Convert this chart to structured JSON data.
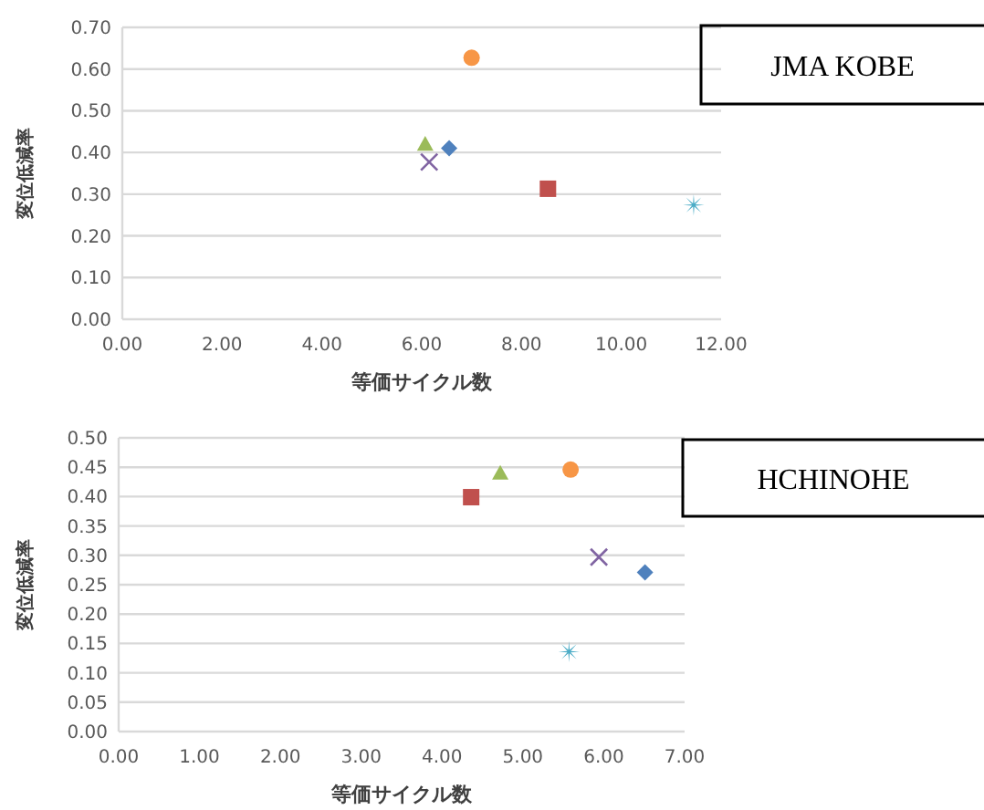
{
  "chart_data": [
    {
      "type": "scatter",
      "xlabel": "等価サイクル数",
      "ylabel": "変位低減率",
      "annotations": [
        "JMA KOBE"
      ],
      "grid": "y",
      "xlim": [
        0,
        12
      ],
      "ylim": [
        0,
        0.7
      ],
      "xticks": [
        {
          "value": 0,
          "label": "0.00"
        },
        {
          "value": 2,
          "label": "2.00"
        },
        {
          "value": 4,
          "label": "4.00"
        },
        {
          "value": 6,
          "label": "6.00"
        },
        {
          "value": 8,
          "label": "8.00"
        },
        {
          "value": 10,
          "label": "10.00"
        },
        {
          "value": 12,
          "label": "12.00"
        }
      ],
      "yticks": [
        {
          "value": 0,
          "label": "0.00"
        },
        {
          "value": 0.1,
          "label": "0.10"
        },
        {
          "value": 0.2,
          "label": "0.20"
        },
        {
          "value": 0.3,
          "label": "0.30"
        },
        {
          "value": 0.4,
          "label": "0.40"
        },
        {
          "value": 0.5,
          "label": "0.50"
        },
        {
          "value": 0.6,
          "label": "0.60"
        },
        {
          "value": 0.7,
          "label": "0.70"
        }
      ],
      "series": [
        {
          "color": "#4f81bd",
          "marker": "diamond",
          "x": [
            6.55
          ],
          "values": [
            0.41
          ]
        },
        {
          "color": "#c0504d",
          "marker": "square",
          "x": [
            8.53
          ],
          "values": [
            0.313
          ]
        },
        {
          "color": "#9bbb59",
          "marker": "triangle",
          "x": [
            6.07
          ],
          "values": [
            0.42
          ]
        },
        {
          "color": "#8064a2",
          "marker": "cross",
          "x": [
            6.15
          ],
          "values": [
            0.377
          ]
        },
        {
          "color": "#4bacc6",
          "marker": "star",
          "x": [
            11.45
          ],
          "values": [
            0.274
          ]
        },
        {
          "color": "#f79646",
          "marker": "circle",
          "x": [
            7.0
          ],
          "values": [
            0.627
          ]
        }
      ]
    },
    {
      "type": "scatter",
      "xlabel": "等価サイクル数",
      "ylabel": "変位低減率",
      "annotations": [
        "HCHINOHE"
      ],
      "grid": "y",
      "xlim": [
        0,
        7
      ],
      "ylim": [
        0,
        0.5
      ],
      "xticks": [
        {
          "value": 0,
          "label": "0.00"
        },
        {
          "value": 1,
          "label": "1.00"
        },
        {
          "value": 2,
          "label": "2.00"
        },
        {
          "value": 3,
          "label": "3.00"
        },
        {
          "value": 4,
          "label": "4.00"
        },
        {
          "value": 5,
          "label": "5.00"
        },
        {
          "value": 6,
          "label": "6.00"
        },
        {
          "value": 7,
          "label": "7.00"
        }
      ],
      "yticks": [
        {
          "value": 0,
          "label": "0.00"
        },
        {
          "value": 0.05,
          "label": "0.05"
        },
        {
          "value": 0.1,
          "label": "0.10"
        },
        {
          "value": 0.15,
          "label": "0.15"
        },
        {
          "value": 0.2,
          "label": "0.20"
        },
        {
          "value": 0.25,
          "label": "0.25"
        },
        {
          "value": 0.3,
          "label": "0.30"
        },
        {
          "value": 0.35,
          "label": "0.35"
        },
        {
          "value": 0.4,
          "label": "0.40"
        },
        {
          "value": 0.45,
          "label": "0.45"
        },
        {
          "value": 0.5,
          "label": "0.50"
        }
      ],
      "series": [
        {
          "color": "#4f81bd",
          "marker": "diamond",
          "x": [
            6.51
          ],
          "values": [
            0.271
          ]
        },
        {
          "color": "#c0504d",
          "marker": "square",
          "x": [
            4.36
          ],
          "values": [
            0.399
          ]
        },
        {
          "color": "#9bbb59",
          "marker": "triangle",
          "x": [
            4.72
          ],
          "values": [
            0.44
          ]
        },
        {
          "color": "#8064a2",
          "marker": "cross",
          "x": [
            5.94
          ],
          "values": [
            0.297
          ]
        },
        {
          "color": "#4bacc6",
          "marker": "star",
          "x": [
            5.57
          ],
          "values": [
            0.136
          ]
        },
        {
          "color": "#f79646",
          "marker": "circle",
          "x": [
            5.59
          ],
          "values": [
            0.446
          ]
        }
      ]
    }
  ]
}
